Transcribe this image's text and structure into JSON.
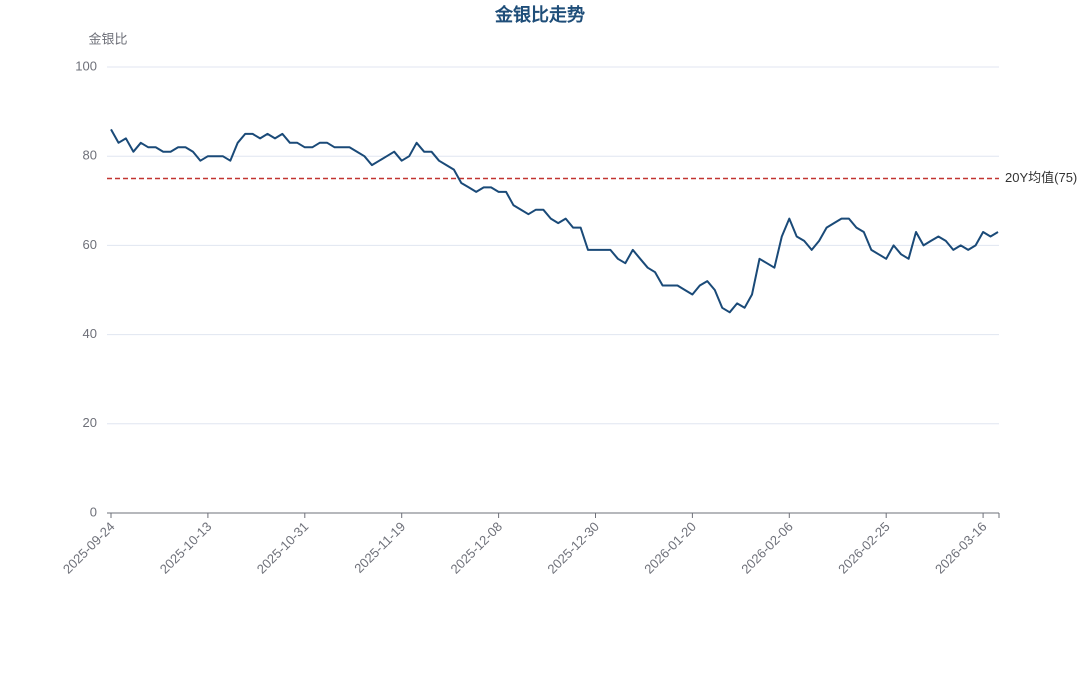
{
  "chart_data": {
    "type": "line",
    "title": "金银比走势",
    "y_axis_label": "金银比",
    "categories": [
      "2025-09-24",
      null,
      null,
      null,
      null,
      null,
      null,
      null,
      null,
      null,
      null,
      null,
      null,
      "2025-10-13",
      null,
      null,
      null,
      null,
      null,
      null,
      null,
      null,
      null,
      null,
      null,
      null,
      "2025-10-31",
      null,
      null,
      null,
      null,
      null,
      null,
      null,
      null,
      null,
      null,
      null,
      null,
      "2025-11-19",
      null,
      null,
      null,
      null,
      null,
      null,
      null,
      null,
      null,
      null,
      null,
      null,
      "2025-12-08",
      null,
      null,
      null,
      null,
      null,
      null,
      null,
      null,
      null,
      null,
      null,
      null,
      "2025-12-30",
      null,
      null,
      null,
      null,
      null,
      null,
      null,
      null,
      null,
      null,
      null,
      null,
      "2026-01-20",
      null,
      null,
      null,
      null,
      null,
      null,
      null,
      null,
      null,
      null,
      null,
      null,
      "2026-02-06",
      null,
      null,
      null,
      null,
      null,
      null,
      null,
      null,
      null,
      null,
      null,
      null,
      "2026-02-25",
      null,
      null,
      null,
      null,
      null,
      null,
      null,
      null,
      null,
      null,
      null,
      null,
      "2026-03-16",
      null,
      null
    ],
    "series": [
      {
        "color": "#1a4a78",
        "values": [
          86,
          83,
          84,
          81,
          83,
          82,
          82,
          81,
          81,
          82,
          82,
          81,
          79,
          80,
          80,
          80,
          79,
          83,
          85,
          85,
          84,
          85,
          84,
          85,
          83,
          83,
          82,
          82,
          83,
          83,
          82,
          82,
          82,
          81,
          80,
          78,
          79,
          80,
          81,
          79,
          80,
          83,
          81,
          81,
          79,
          78,
          77,
          74,
          73,
          72,
          73,
          73,
          72,
          72,
          69,
          68,
          67,
          68,
          68,
          66,
          65,
          66,
          64,
          64,
          59,
          59,
          59,
          59,
          57,
          56,
          59,
          57,
          55,
          54,
          51,
          51,
          51,
          50,
          49,
          51,
          52,
          50,
          46,
          45,
          47,
          46,
          49,
          57,
          56,
          55,
          62,
          66,
          62,
          61,
          59,
          61,
          64,
          65,
          66,
          66,
          64,
          63,
          59,
          58,
          57,
          60,
          58,
          57,
          63,
          60,
          61,
          62,
          61,
          59,
          60,
          59,
          60,
          63,
          62,
          63
        ]
      }
    ],
    "ylim": [
      0,
      100
    ],
    "yticks": [
      0,
      20,
      40,
      60,
      80,
      100
    ],
    "grid": true,
    "reference_line": {
      "value": 75,
      "label": "20Y均值(75)",
      "color": "#c23531"
    }
  }
}
